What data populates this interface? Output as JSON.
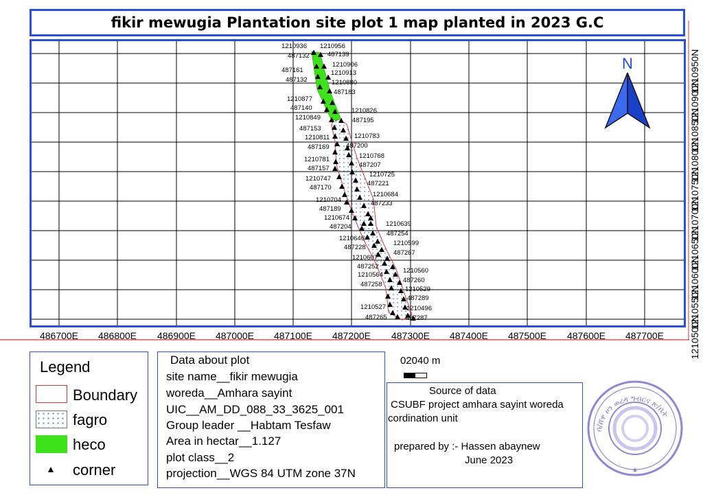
{
  "title": "fikir mewugia Plantation site plot 1 map planted in 2023 G.C",
  "north_arrow": {
    "label": "N",
    "color": "#1f49e0"
  },
  "x_ticks": [
    "486700E",
    "486800E",
    "486900E",
    "487000E",
    "487100E",
    "487200E",
    "487300E",
    "487400E",
    "487500E",
    "487600E",
    "487700E"
  ],
  "y_ticks": [
    "1210500N",
    "1210550N",
    "1210600N",
    "1210650N",
    "1210700N",
    "1210750N",
    "1210800N",
    "1210850N",
    "1210900N",
    "1210950N"
  ],
  "point_labels": [
    "1210936",
    "487132",
    "1210956",
    "487139",
    "1210906",
    "487161",
    "1210913",
    "487132",
    "1210880",
    "487183",
    "1210877",
    "487140",
    "1210826",
    "487195",
    "1210849",
    "487153",
    "1210783",
    "1210811",
    "487200",
    "487169",
    "1210768",
    "1210781",
    "487207",
    "487157",
    "1210725",
    "1210747",
    "487221",
    "487170",
    "1210684",
    "1210704",
    "487233",
    "487189",
    "1210674",
    "487204",
    "1210639",
    "487254",
    "1210646",
    "487228",
    "1210599",
    "487267",
    "1210607",
    "487252",
    "1210560",
    "1210564",
    "487260",
    "487258",
    "1210529",
    "487289",
    "1210527",
    "1210496",
    "487265",
    "487287"
  ],
  "colors": {
    "boundary": "#d23a3a",
    "heco": "#3ee21b",
    "fagro_dots": "#4a86c8",
    "frame": "#2a4fd6"
  },
  "legend": {
    "title": "Legend",
    "items": [
      {
        "label": "Boundary",
        "symbol": "boundary"
      },
      {
        "label": "fagro",
        "symbol": "fagro"
      },
      {
        "label": "heco",
        "symbol": "heco"
      },
      {
        "label": "corner",
        "symbol": "corner"
      }
    ]
  },
  "scale_bar": {
    "label": "02040 m"
  },
  "plot_data": {
    "lines": [
      "Data about plot",
      "site name__fikir mewugia",
      "woreda__Amhara sayint",
      "UIC__AM_DD_088_33_3625_001",
      "Group leader __Habtam Tesfaw",
      "Area in hectar__1.127",
      "plot class__2",
      "projection__WGS 84 UTM zone 37N"
    ]
  },
  "source": {
    "lines": [
      "Source of data",
      "CSUBF project amhara sayint woreda",
      "cordination unit",
      "prepared by :- Hassen abaynew",
      "June 2023"
    ]
  },
  "stamp": {
    "text": "ሰ/ሸዋ ዞን ወረዳ ግብርና ጽ/ቤት"
  }
}
